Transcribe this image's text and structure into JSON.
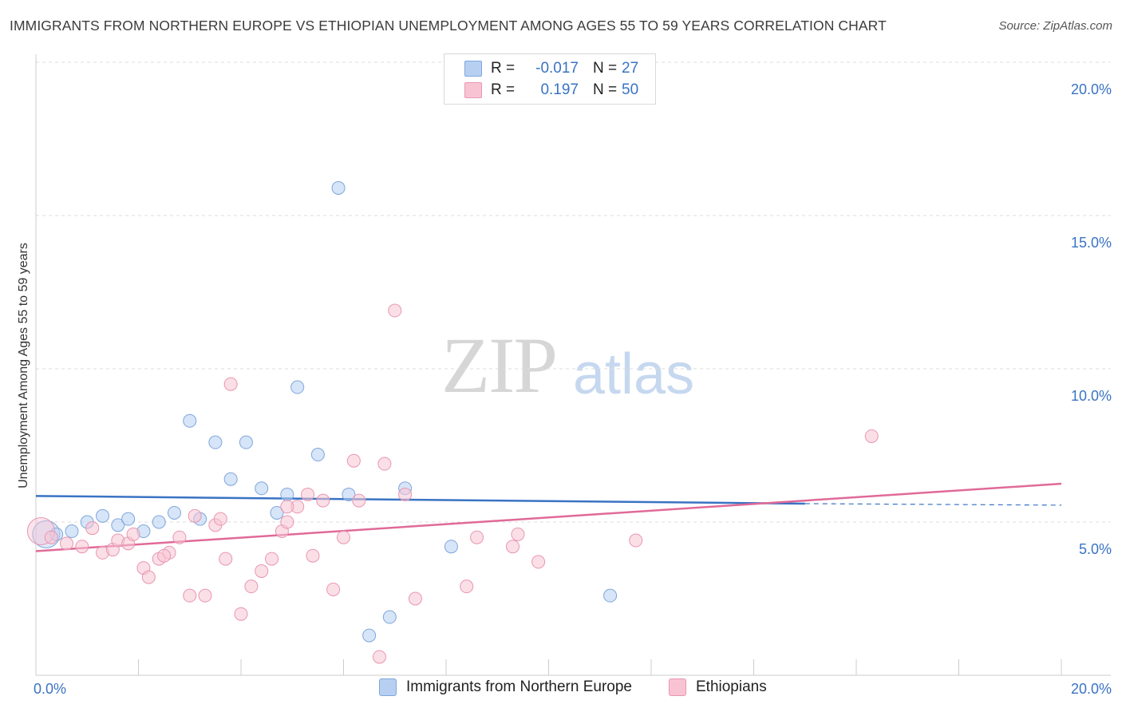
{
  "title": "IMMIGRANTS FROM NORTHERN EUROPE VS ETHIOPIAN UNEMPLOYMENT AMONG AGES 55 TO 59 YEARS CORRELATION CHART",
  "source": "Source: ZipAtlas.com",
  "watermark": {
    "zip": "ZIP",
    "atlas": "atlas"
  },
  "legend": {
    "rows": [
      {
        "r_label": "R =",
        "r_value": "-0.017",
        "n_label": "N =",
        "n_value": "27"
      },
      {
        "r_label": "R =",
        "r_value": "0.197",
        "n_label": "N =",
        "n_value": "50"
      }
    ]
  },
  "colors": {
    "blue_fill": "#b7d0f2",
    "blue_stroke": "#7ea6dc",
    "blue_line": "#3a73c4",
    "pink_fill": "#f8c4d4",
    "pink_stroke": "#e896b2",
    "pink_line": "#e06a98",
    "tick_text": "#3a73c4",
    "grid": "#dddddd"
  },
  "chart_data": {
    "type": "scatter",
    "title": "IMMIGRANTS FROM NORTHERN EUROPE VS ETHIOPIAN UNEMPLOYMENT AMONG AGES 55 TO 59 YEARS CORRELATION CHART",
    "xlabel": "",
    "ylabel": "Unemployment Among Ages 55 to 59 years",
    "xlim": [
      0,
      20
    ],
    "ylim": [
      0,
      20
    ],
    "x_tick_labels": {
      "min": "0.0%",
      "max": "20.0%"
    },
    "y_ticks": [
      {
        "value": 5,
        "label": "5.0%"
      },
      {
        "value": 10,
        "label": "10.0%"
      },
      {
        "value": 15,
        "label": "15.0%"
      },
      {
        "value": 20,
        "label": "20.0%"
      }
    ],
    "grid": true,
    "series": [
      {
        "name": "Immigrants from Northern Europe",
        "color": "blue",
        "trend": {
          "x0": 0,
          "y0": 5.85,
          "x1": 15.0,
          "y1": 5.6,
          "dash_to": 20.0,
          "dash_y": 5.55
        },
        "points": [
          {
            "x": 0.2,
            "y": 4.6,
            "big": true
          },
          {
            "x": 0.4,
            "y": 4.6
          },
          {
            "x": 0.7,
            "y": 4.7
          },
          {
            "x": 1.0,
            "y": 5.0
          },
          {
            "x": 1.3,
            "y": 5.2
          },
          {
            "x": 1.6,
            "y": 4.9
          },
          {
            "x": 1.8,
            "y": 5.1
          },
          {
            "x": 2.1,
            "y": 4.7
          },
          {
            "x": 2.4,
            "y": 5.0
          },
          {
            "x": 2.7,
            "y": 5.3
          },
          {
            "x": 3.0,
            "y": 8.3
          },
          {
            "x": 3.2,
            "y": 5.1
          },
          {
            "x": 3.5,
            "y": 7.6
          },
          {
            "x": 3.8,
            "y": 6.4
          },
          {
            "x": 4.1,
            "y": 7.6
          },
          {
            "x": 4.4,
            "y": 6.1
          },
          {
            "x": 4.7,
            "y": 5.3
          },
          {
            "x": 4.9,
            "y": 5.9
          },
          {
            "x": 5.1,
            "y": 9.4
          },
          {
            "x": 5.5,
            "y": 7.2
          },
          {
            "x": 5.9,
            "y": 15.9
          },
          {
            "x": 6.1,
            "y": 5.9
          },
          {
            "x": 6.5,
            "y": 1.3
          },
          {
            "x": 6.9,
            "y": 1.9
          },
          {
            "x": 7.2,
            "y": 6.1
          },
          {
            "x": 8.1,
            "y": 4.2
          },
          {
            "x": 11.2,
            "y": 2.6
          }
        ]
      },
      {
        "name": "Ethiopians",
        "color": "pink",
        "trend": {
          "x0": 0,
          "y0": 4.05,
          "x1": 20.0,
          "y1": 6.25
        },
        "points": [
          {
            "x": 0.1,
            "y": 4.7,
            "big": true
          },
          {
            "x": 0.3,
            "y": 4.5
          },
          {
            "x": 0.6,
            "y": 4.3
          },
          {
            "x": 0.9,
            "y": 4.2
          },
          {
            "x": 1.1,
            "y": 4.8
          },
          {
            "x": 1.3,
            "y": 4.0
          },
          {
            "x": 1.5,
            "y": 4.1
          },
          {
            "x": 1.6,
            "y": 4.4
          },
          {
            "x": 1.8,
            "y": 4.3
          },
          {
            "x": 1.9,
            "y": 4.6
          },
          {
            "x": 2.1,
            "y": 3.5
          },
          {
            "x": 2.2,
            "y": 3.2
          },
          {
            "x": 2.4,
            "y": 3.8
          },
          {
            "x": 2.6,
            "y": 4.0
          },
          {
            "x": 2.8,
            "y": 4.5
          },
          {
            "x": 3.0,
            "y": 2.6
          },
          {
            "x": 3.1,
            "y": 5.2
          },
          {
            "x": 3.3,
            "y": 2.6
          },
          {
            "x": 3.5,
            "y": 4.9
          },
          {
            "x": 3.6,
            "y": 5.1
          },
          {
            "x": 3.7,
            "y": 3.8
          },
          {
            "x": 3.8,
            "y": 9.5
          },
          {
            "x": 4.0,
            "y": 2.0
          },
          {
            "x": 4.2,
            "y": 2.9
          },
          {
            "x": 4.4,
            "y": 3.4
          },
          {
            "x": 4.6,
            "y": 3.8
          },
          {
            "x": 4.8,
            "y": 4.7
          },
          {
            "x": 4.9,
            "y": 5.0
          },
          {
            "x": 5.1,
            "y": 5.5
          },
          {
            "x": 5.3,
            "y": 5.9
          },
          {
            "x": 5.4,
            "y": 3.9
          },
          {
            "x": 5.6,
            "y": 5.7
          },
          {
            "x": 5.8,
            "y": 2.8
          },
          {
            "x": 6.0,
            "y": 4.5
          },
          {
            "x": 6.2,
            "y": 7.0
          },
          {
            "x": 6.3,
            "y": 5.7
          },
          {
            "x": 6.7,
            "y": 0.6
          },
          {
            "x": 6.8,
            "y": 6.9
          },
          {
            "x": 7.0,
            "y": 11.9
          },
          {
            "x": 7.2,
            "y": 5.9
          },
          {
            "x": 7.4,
            "y": 2.5
          },
          {
            "x": 8.4,
            "y": 2.9
          },
          {
            "x": 8.6,
            "y": 4.5
          },
          {
            "x": 9.3,
            "y": 4.2
          },
          {
            "x": 9.4,
            "y": 4.6
          },
          {
            "x": 9.8,
            "y": 3.7
          },
          {
            "x": 11.7,
            "y": 4.4
          },
          {
            "x": 16.3,
            "y": 7.8
          },
          {
            "x": 4.9,
            "y": 5.5
          },
          {
            "x": 2.5,
            "y": 3.9
          }
        ]
      }
    ]
  },
  "bottom_legend": {
    "items": [
      "Immigrants from Northern Europe",
      "Ethiopians"
    ]
  }
}
